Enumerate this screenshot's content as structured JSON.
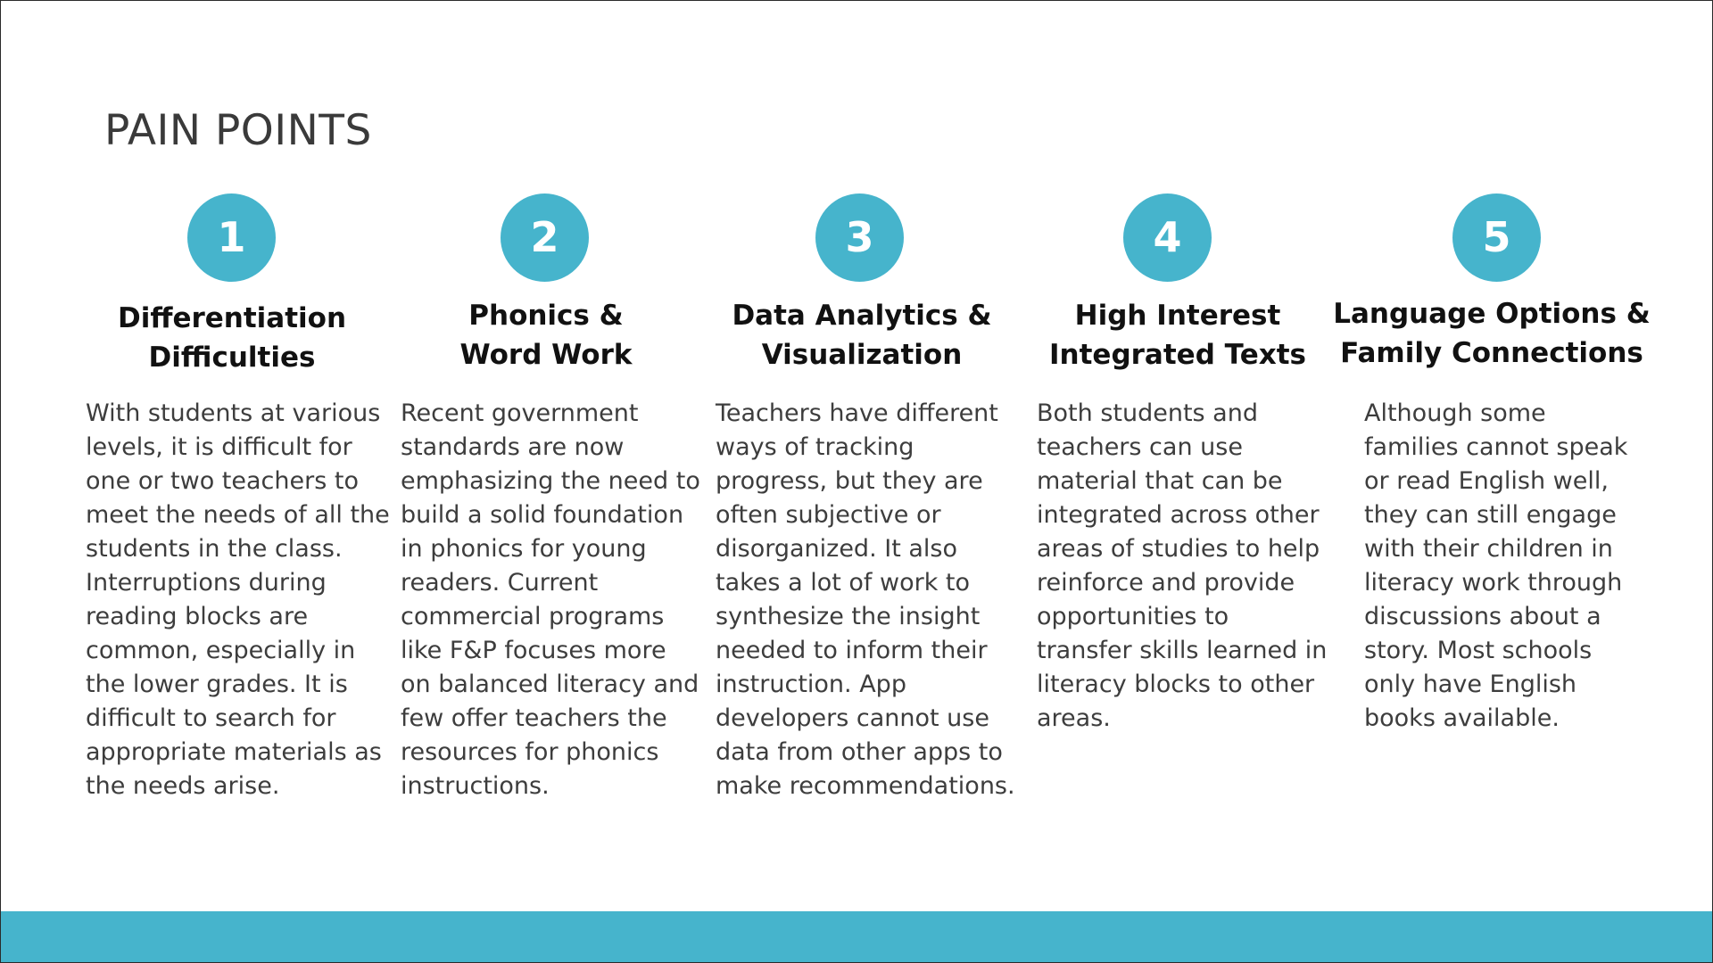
{
  "title": "PAIN POINTS",
  "accent_color": "#46b4cc",
  "columns": [
    {
      "number": "1",
      "heading_lines": [
        "Differentiation",
        "Difficulties"
      ],
      "body_lines": [
        "With students at various",
        "levels, it is difficult for",
        "one or two teachers to",
        "meet the needs of all the",
        "students in the class.",
        "Interruptions during",
        "reading blocks are",
        "common, especially in",
        "the lower grades. It is",
        "difficult to search for",
        "appropriate materials as",
        "the needs arise."
      ]
    },
    {
      "number": "2",
      "heading_lines": [
        "Phonics &",
        "Word Work"
      ],
      "body_lines": [
        "Recent government",
        "standards are now",
        "emphasizing the need to",
        "build a solid foundation",
        "in phonics for young",
        "readers. Current",
        "commercial programs",
        "like F&P focuses more",
        "on balanced literacy and",
        "few offer teachers the",
        "resources for phonics",
        "instructions."
      ]
    },
    {
      "number": "3",
      "heading_lines": [
        "Data Analytics &",
        "Visualization"
      ],
      "body_lines": [
        "Teachers have different",
        "ways of tracking",
        "progress, but they are",
        "often subjective or",
        "disorganized. It also",
        "takes a lot of work to",
        "synthesize the insight",
        "needed to inform their",
        "instruction. App",
        "developers cannot use",
        "data from other apps to",
        "make recommendations."
      ]
    },
    {
      "number": "4",
      "heading_lines": [
        "High Interest",
        "Integrated Texts"
      ],
      "body_lines": [
        "Both students and",
        "teachers can use",
        "material that can be",
        "integrated across other",
        "areas of studies to help",
        "reinforce and provide",
        "opportunities to",
        "transfer skills learned in",
        "literacy blocks to other",
        "areas."
      ]
    },
    {
      "number": "5",
      "heading_lines": [
        "Language Options &",
        "Family Connections"
      ],
      "body_lines": [
        "Although some",
        "families cannot speak",
        "or read English well,",
        "they can still engage",
        "with their children in",
        "literacy work through",
        "discussions about a",
        "story. Most schools",
        "only have English",
        "books available."
      ]
    }
  ]
}
